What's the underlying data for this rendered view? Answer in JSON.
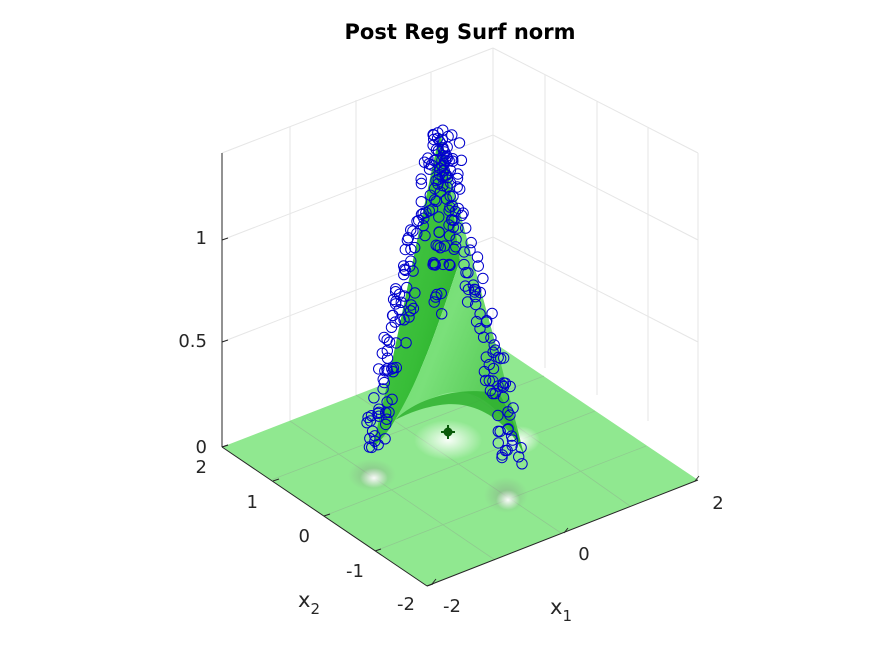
{
  "chart_data": {
    "type": "scatter",
    "title": "Post Reg Surf norm",
    "xlabel": "x",
    "xlabel_subscript": "1",
    "ylabel": "x",
    "ylabel_subscript": "2",
    "zlabel": "",
    "x_ticks": [
      "-2",
      "0",
      "2"
    ],
    "y_ticks": [
      "-2",
      "-1",
      "0",
      "1",
      "2"
    ],
    "z_ticks": [
      "0",
      "0.5",
      "1"
    ],
    "xlim": [
      -2,
      2
    ],
    "ylim": [
      -2,
      2
    ],
    "zlim": [
      0,
      1.4
    ],
    "grid": true,
    "view": "3d",
    "surface": {
      "description": "ridge surface",
      "color": "#33cc33",
      "floor_color": "#90e890"
    },
    "markers": {
      "color": "#0000cc",
      "symbol": "circle"
    },
    "center_marker": {
      "x": 0,
      "y": 0,
      "z": 0,
      "color": "#0a5a0a"
    }
  }
}
